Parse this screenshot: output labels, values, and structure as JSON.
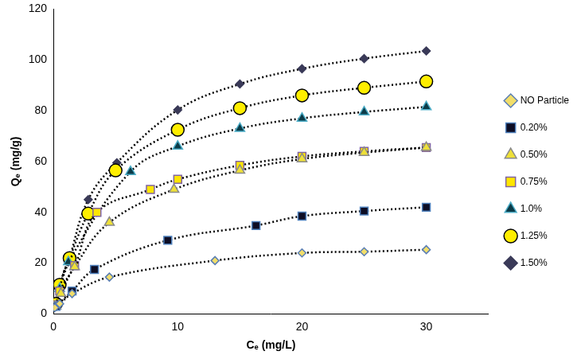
{
  "chart_data": {
    "type": "line",
    "x_label": "Cₑ (mg/L)",
    "y_label": "Qₑ (mg/g)",
    "xlim": [
      0,
      35
    ],
    "xticks": [
      0,
      10,
      20,
      30
    ],
    "ylim": [
      0,
      120
    ],
    "yticks": [
      0,
      20,
      40,
      60,
      80,
      100,
      120
    ],
    "grid": false,
    "legend": "right",
    "line_style": "dotted",
    "series": [
      {
        "name": "NO Particle",
        "color": "#f2de6a",
        "marker": "diamond",
        "x": [
          0.1,
          0.5,
          1.5,
          4.5,
          13,
          20,
          25,
          30
        ],
        "values": [
          2.5,
          4,
          8,
          14.5,
          21,
          24,
          24.5,
          25.3
        ]
      },
      {
        "name": "0.20%",
        "color": "#0d0d24",
        "marker": "square",
        "x": [
          0.2,
          1.5,
          3.3,
          9.2,
          16.3,
          20,
          25,
          30
        ],
        "values": [
          3,
          9,
          17.5,
          29,
          34.8,
          38.5,
          40.5,
          42
        ]
      },
      {
        "name": "0.50%",
        "color": "#eee038",
        "marker": "triangle",
        "x": [
          0.2,
          0.6,
          1.7,
          4.5,
          9.7,
          15,
          20,
          25,
          30
        ],
        "values": [
          3,
          8,
          18.5,
          36,
          49,
          56.5,
          61,
          63.5,
          65.5
        ]
      },
      {
        "name": "0.75%",
        "color": "#ffe600",
        "marker": "square",
        "x": [
          0.2,
          0.5,
          1.7,
          3.5,
          7.8,
          10,
          15,
          20,
          25,
          30
        ],
        "values": [
          3.5,
          9,
          19,
          40,
          49,
          53,
          58.5,
          62,
          64,
          65.5
        ]
      },
      {
        "name": "1.0%",
        "color": "#0b3b48",
        "marker": "triangle",
        "x": [
          0.2,
          0.5,
          1.2,
          6.2,
          10,
          15,
          20,
          25,
          30
        ],
        "values": [
          3,
          10,
          20.5,
          56,
          66,
          73,
          77,
          79.5,
          81.5
        ]
      },
      {
        "name": "1.25%",
        "color": "#ffee00",
        "marker": "circle",
        "x": [
          0.2,
          0.5,
          1.3,
          2.8,
          5,
          10,
          15,
          20,
          25,
          30
        ],
        "values": [
          4,
          11.5,
          22,
          39.5,
          56.5,
          72.5,
          81,
          86,
          89,
          91.5
        ]
      },
      {
        "name": "1.50%",
        "color": "#3a3a58",
        "marker": "diamond",
        "x": [
          0.1,
          0.5,
          1.2,
          2.8,
          5.1,
          10,
          15,
          20,
          25,
          30
        ],
        "values": [
          3,
          10.5,
          20.5,
          45,
          59.5,
          80.3,
          90.5,
          96.5,
          100.5,
          103.5
        ]
      }
    ]
  }
}
